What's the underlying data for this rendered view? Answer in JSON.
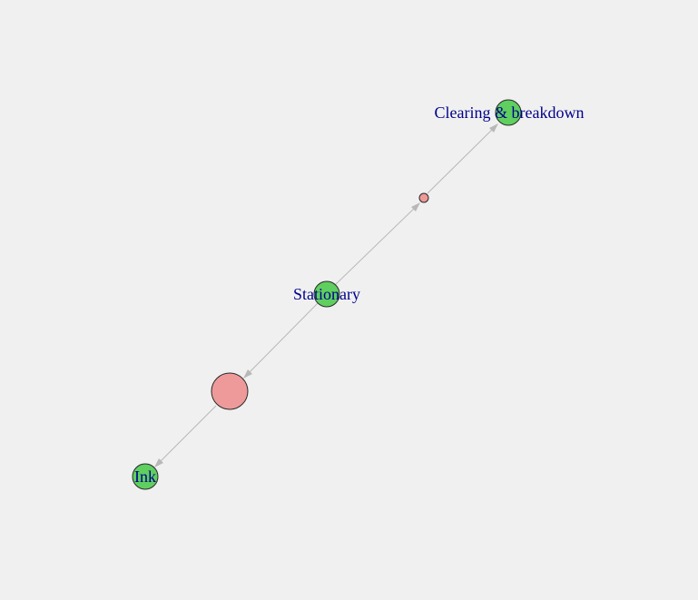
{
  "graph": {
    "nodes": [
      {
        "id": "clearing",
        "label": "Clearing & breakdown",
        "kind": "item"
      },
      {
        "id": "rule1",
        "label": "",
        "kind": "rule",
        "size": "small"
      },
      {
        "id": "stationary",
        "label": "Stationary",
        "kind": "item"
      },
      {
        "id": "rule2",
        "label": "",
        "kind": "rule",
        "size": "large"
      },
      {
        "id": "ink",
        "label": "Ink",
        "kind": "item"
      }
    ],
    "edges": [
      {
        "from": "stationary",
        "to": "rule1"
      },
      {
        "from": "rule1",
        "to": "clearing"
      },
      {
        "from": "stationary",
        "to": "rule2"
      },
      {
        "from": "rule2",
        "to": "ink"
      }
    ],
    "colors": {
      "background": "#f0f0f0",
      "item_node": "#5fcf5f",
      "rule_node": "#ee9a9a",
      "edge": "#b8b8b8",
      "label": "#00008b"
    }
  }
}
